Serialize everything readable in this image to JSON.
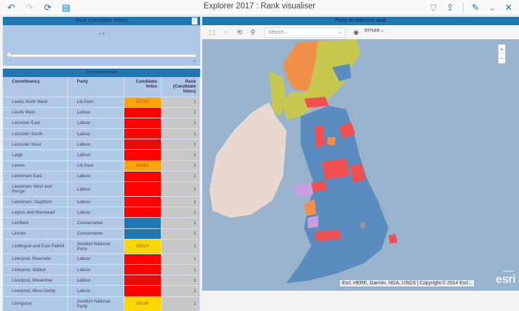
{
  "header": {
    "title": "Explorer 2017 : Rank visualiser",
    "icons": [
      "undo-icon",
      "redo-icon",
      "refresh-icon",
      "notes-icon",
      "filter-icon",
      "share-icon",
      "edit-icon",
      "collapse-icon",
      "close-icon"
    ]
  },
  "rank_panel": {
    "title": "Rank (Candidate Votes)",
    "value_label": "= 1",
    "slider_min": "1",
    "slider_max": "10",
    "menu_icon": "more-icon"
  },
  "constituencies": {
    "title": "Constituencies",
    "columns": [
      "Constituency",
      "Party",
      "Candidate Votes",
      "Rank (Candidate Votes)"
    ],
    "rows": [
      {
        "constituency": "Leeds North West",
        "party": "Lib Dem",
        "votes": "52793",
        "rank": "1",
        "color": "#ffa500"
      },
      {
        "constituency": "Leeds West",
        "party": "Labour",
        "votes": "",
        "rank": "1",
        "color": "#ff0000"
      },
      {
        "constituency": "Leicester East",
        "party": "Labour",
        "votes": "",
        "rank": "1",
        "color": "#ff0000"
      },
      {
        "constituency": "Leicester South",
        "party": "Labour",
        "votes": "",
        "rank": "1",
        "color": "#ff0000"
      },
      {
        "constituency": "Leicester West",
        "party": "Labour",
        "votes": "",
        "rank": "1",
        "color": "#ff0000"
      },
      {
        "constituency": "Leigh",
        "party": "Labour",
        "votes": "",
        "rank": "1",
        "color": "#ff0000"
      },
      {
        "constituency": "Lewes",
        "party": "Lib Dem",
        "votes": "65483",
        "rank": "1",
        "color": "#ffa500"
      },
      {
        "constituency": "Lewisham East",
        "party": "Labour",
        "votes": "",
        "rank": "1",
        "color": "#ff0000"
      },
      {
        "constituency": "Lewisham West and Penge",
        "party": "Labour",
        "votes": "",
        "rank": "1",
        "color": "#ff0000"
      },
      {
        "constituency": "Lewisham, Deptford",
        "party": "Labour",
        "votes": "",
        "rank": "1",
        "color": "#ff0000"
      },
      {
        "constituency": "Leyton and Wanstead",
        "party": "Labour",
        "votes": "",
        "rank": "1",
        "color": "#ff0000"
      },
      {
        "constituency": "Lichfield",
        "party": "Conservative",
        "votes": "",
        "rank": "1",
        "color": "#1f77b4"
      },
      {
        "constituency": "Lincoln",
        "party": "Conservative",
        "votes": "",
        "rank": "1",
        "color": "#1f77b4"
      },
      {
        "constituency": "Linlithgow and East Falkirk",
        "party": "Scottish National Party",
        "votes": "65524",
        "rank": "1",
        "color": "#ffd700"
      },
      {
        "constituency": "Liverpool, Riverside",
        "party": "Labour",
        "votes": "",
        "rank": "1",
        "color": "#ff0000"
      },
      {
        "constituency": "Liverpool, Walton",
        "party": "Labour",
        "votes": "",
        "rank": "1",
        "color": "#ff0000"
      },
      {
        "constituency": "Liverpool, Wavertree",
        "party": "Labour",
        "votes": "",
        "rank": "1",
        "color": "#ff0000"
      },
      {
        "constituency": "Liverpool, West Derby",
        "party": "Labour",
        "votes": "",
        "rank": "1",
        "color": "#ff0000"
      },
      {
        "constituency": "Livingston",
        "party": "Scottish National Party",
        "votes": "68196",
        "rank": "1",
        "color": "#ffd700"
      }
    ]
  },
  "map": {
    "title": "Party at selected rank",
    "search_placeholder": "Search...",
    "styles_label": "STYLES",
    "tools": [
      "rect-select-icon",
      "lasso-select-icon",
      "polygon-select-icon",
      "clear-pin-icon",
      "layers-icon"
    ],
    "zoom_in": "+",
    "zoom_out": "−",
    "attribution": "Esri, HERE, Garmin, NGA, USGS | Copyright:© 2014 Esri...",
    "logo": "esri",
    "logo_sub": "POWERED BY",
    "party_colors": {
      "Conservative": "#5b8cc0",
      "Labour": "#f05050",
      "SNP": "#c8c850",
      "Lib Dem": "#f0904a",
      "Plaid Cymru": "#c8a0e0"
    }
  }
}
